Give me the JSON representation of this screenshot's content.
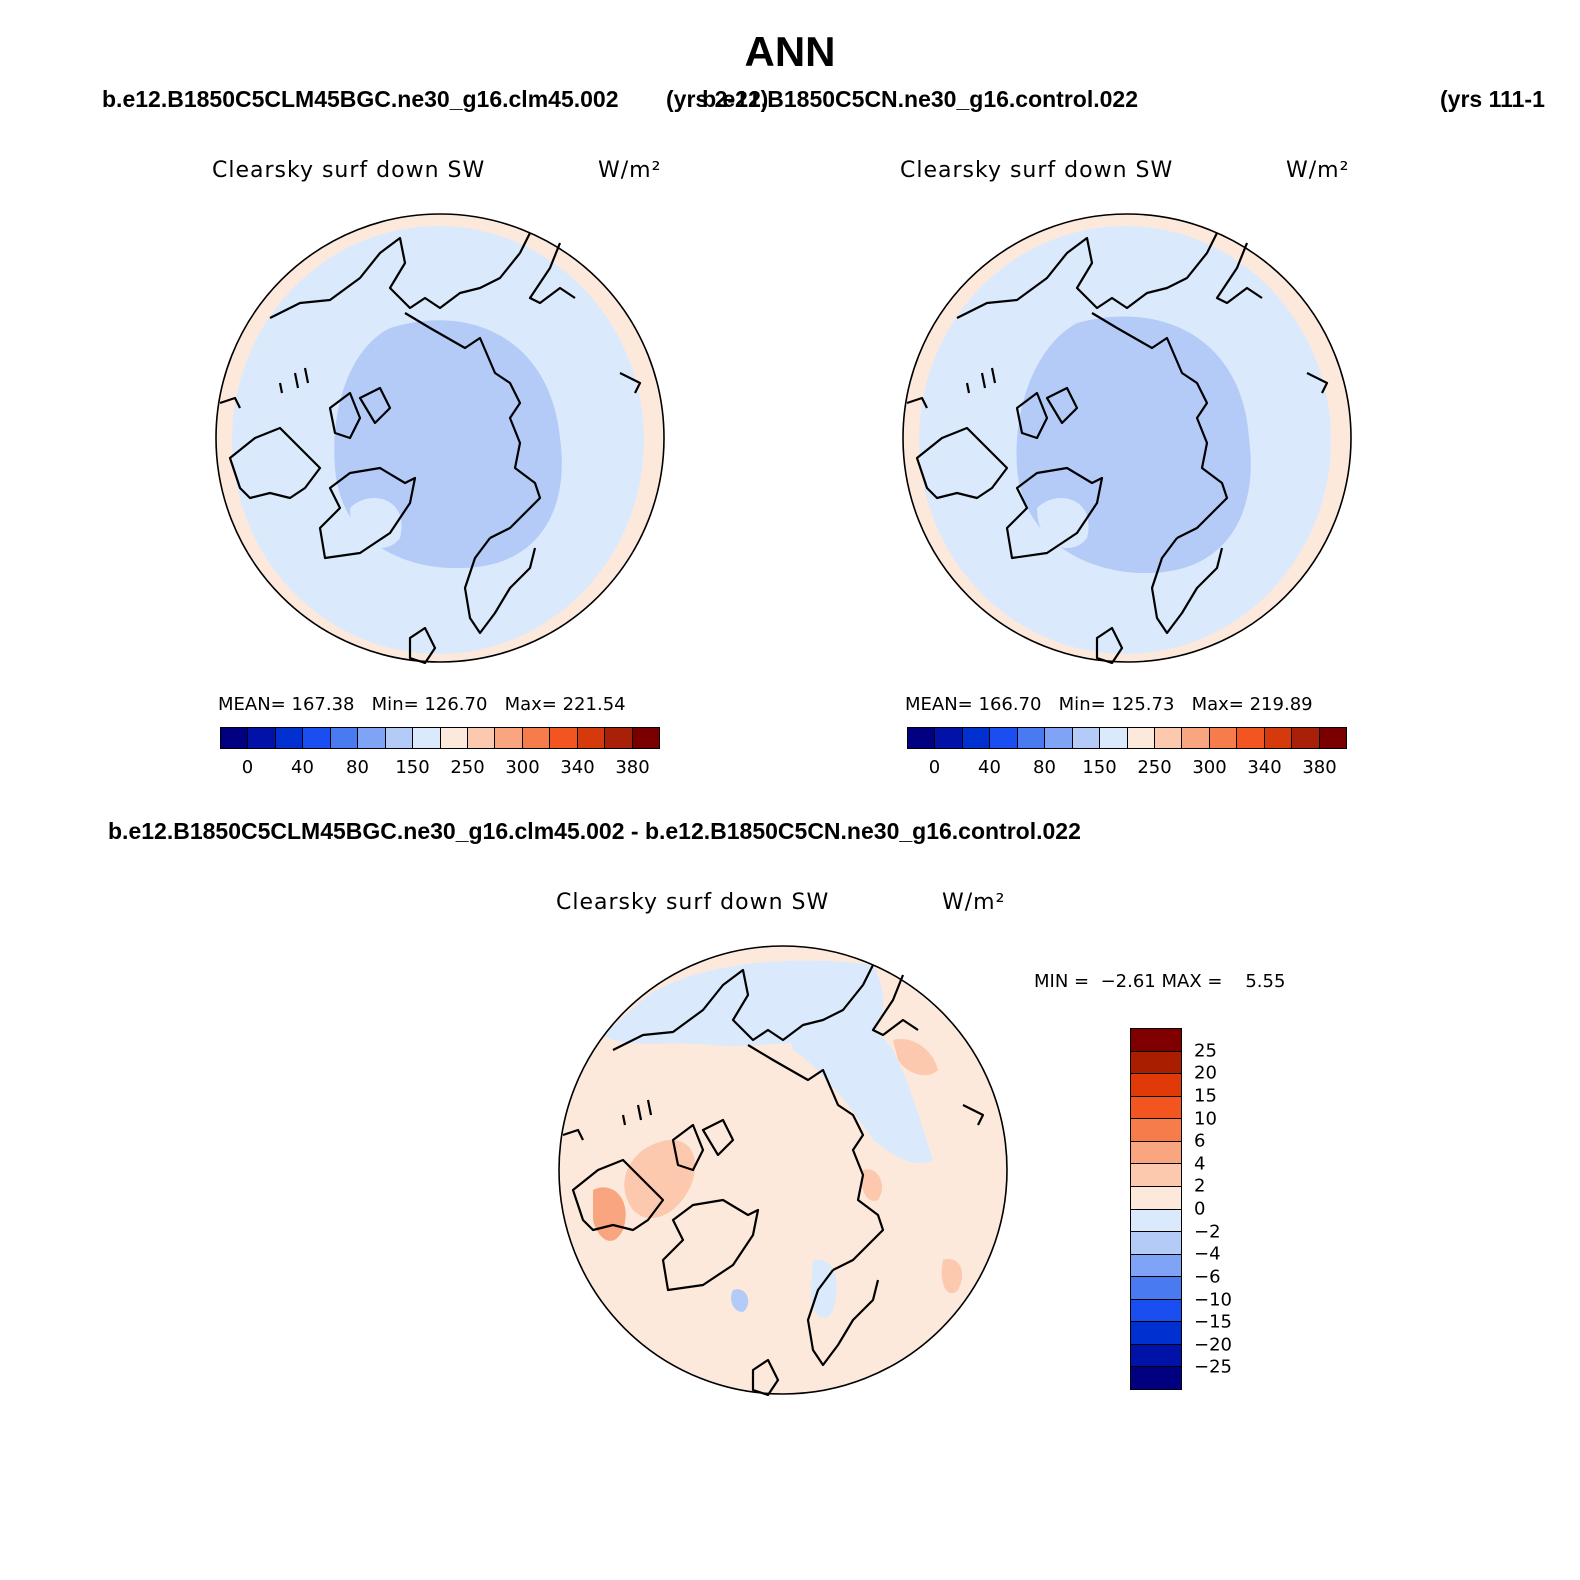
{
  "title": "ANN",
  "header": {
    "case1": "b.e12.B1850C5CLM45BGC.ne30_g16.clm45.002",
    "case1_years": "(yrs 2-21)",
    "case2": "b.e12.B1850C5CN.ne30_g16.control.022",
    "case2_years": "(yrs 111-1"
  },
  "panels": [
    {
      "title": "Clearsky surf down SW",
      "units": "W/m²",
      "stats": {
        "mean_label": "MEAN=",
        "mean": "167.38",
        "min_label": "Min=",
        "min": "126.70",
        "max_label": "Max=",
        "max": "221.54"
      }
    },
    {
      "title": "Clearsky surf down SW",
      "units": "W/m²",
      "stats": {
        "mean_label": "MEAN=",
        "mean": "166.70",
        "min_label": "Min=",
        "min": "125.73",
        "max_label": "Max=",
        "max": "219.89"
      }
    }
  ],
  "abs_colorbar": {
    "colors": [
      "#000080",
      "#0012a8",
      "#0030d0",
      "#1a4ef0",
      "#4a7af0",
      "#7fa3f5",
      "#b4cbf8",
      "#daeafc",
      "#fde9dc",
      "#fcc9ae",
      "#f9a57f",
      "#f77c4b",
      "#f25520",
      "#d43a0c",
      "#a82008",
      "#7a0000"
    ],
    "tick_labels": [
      "0",
      "40",
      "80",
      "150",
      "250",
      "300",
      "340",
      "380"
    ]
  },
  "diff": {
    "title": "b.e12.B1850C5CLM45BGC.ne30_g16.clm45.002 - b.e12.B1850C5CN.ne30_g16.control.022",
    "plot_title": "Clearsky surf down SW",
    "units": "W/m²",
    "min_label": "MIN =",
    "min": "−2.61",
    "max_label": "MAX =",
    "max": "5.55",
    "colorbar_colors": [
      "#800000",
      "#aa1e00",
      "#e03a08",
      "#f25520",
      "#f77c4b",
      "#f9a57f",
      "#fcc9ae",
      "#fde9dc",
      "#daeafc",
      "#b4cbf8",
      "#7fa3f5",
      "#4a7af0",
      "#1a4ef0",
      "#0030d0",
      "#0012a8",
      "#000080"
    ],
    "tick_labels": [
      "25",
      "20",
      "15",
      "10",
      "6",
      "4",
      "2",
      "0",
      "−2",
      "−4",
      "−6",
      "−10",
      "−15",
      "−20",
      "−25"
    ]
  },
  "map_fill_colors": {
    "outer": "#fde9dc",
    "mid": "#daeafc",
    "inner": "#b4cbf8",
    "diff_bg": "#fde9dc",
    "diff_pos": "#fcc9ae",
    "diff_pos2": "#f9a57f",
    "diff_neg": "#daeafc",
    "diff_neg2": "#b4cbf8"
  }
}
